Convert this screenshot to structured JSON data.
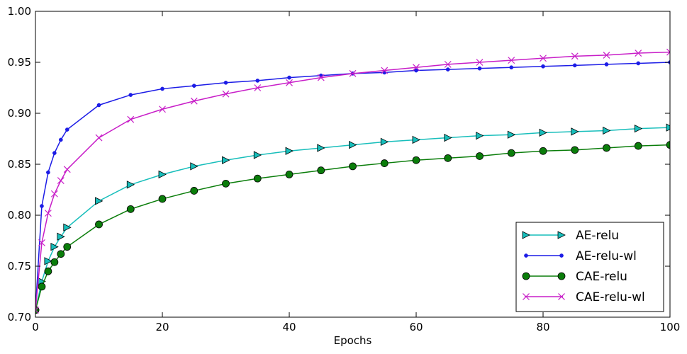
{
  "chart_data": {
    "type": "line",
    "title": "",
    "xlabel": "Epochs",
    "ylabel": "",
    "xlim": [
      0,
      100
    ],
    "ylim": [
      0.7,
      1.0
    ],
    "xticks": [
      0,
      20,
      40,
      60,
      80,
      100
    ],
    "xtick_labels": [
      "0",
      "20",
      "40",
      "60",
      "80",
      "100"
    ],
    "yticks": [
      0.7,
      0.75,
      0.8,
      0.85,
      0.9,
      0.95,
      1.0
    ],
    "ytick_labels": [
      "0.70",
      "0.75",
      "0.80",
      "0.85",
      "0.90",
      "0.95",
      "1.00"
    ],
    "grid": false,
    "legend_position": "bottom-right",
    "x": [
      0,
      1,
      2,
      3,
      4,
      5,
      10,
      15,
      20,
      25,
      30,
      35,
      40,
      45,
      50,
      55,
      60,
      65,
      70,
      75,
      80,
      85,
      90,
      95,
      100
    ],
    "series": [
      {
        "name": "AE-relu",
        "color": "#17bebb",
        "marker": "triangle-right",
        "values": [
          0.707,
          0.735,
          0.755,
          0.769,
          0.779,
          0.788,
          0.814,
          0.83,
          0.84,
          0.848,
          0.854,
          0.859,
          0.863,
          0.866,
          0.869,
          0.872,
          0.874,
          0.876,
          0.878,
          0.879,
          0.881,
          0.882,
          0.883,
          0.885,
          0.886
        ]
      },
      {
        "name": "AE-relu-wl",
        "color": "#1c1ce6",
        "marker": "dot",
        "values": [
          0.707,
          0.809,
          0.842,
          0.861,
          0.874,
          0.884,
          0.908,
          0.918,
          0.924,
          0.927,
          0.93,
          0.932,
          0.935,
          0.937,
          0.939,
          0.94,
          0.942,
          0.943,
          0.944,
          0.945,
          0.946,
          0.947,
          0.948,
          0.949,
          0.95
        ]
      },
      {
        "name": "CAE-relu",
        "color": "#0a7d0a",
        "marker": "circle",
        "values": [
          0.707,
          0.73,
          0.745,
          0.754,
          0.762,
          0.769,
          0.791,
          0.806,
          0.816,
          0.824,
          0.831,
          0.836,
          0.84,
          0.844,
          0.848,
          0.851,
          0.854,
          0.856,
          0.858,
          0.861,
          0.863,
          0.864,
          0.866,
          0.868,
          0.869
        ]
      },
      {
        "name": "CAE-relu-wl",
        "color": "#c81ec8",
        "marker": "x",
        "values": [
          0.707,
          0.773,
          0.802,
          0.821,
          0.834,
          0.845,
          0.876,
          0.894,
          0.904,
          0.912,
          0.919,
          0.925,
          0.93,
          0.935,
          0.939,
          0.942,
          0.945,
          0.948,
          0.95,
          0.952,
          0.954,
          0.956,
          0.957,
          0.959,
          0.96
        ]
      }
    ]
  }
}
